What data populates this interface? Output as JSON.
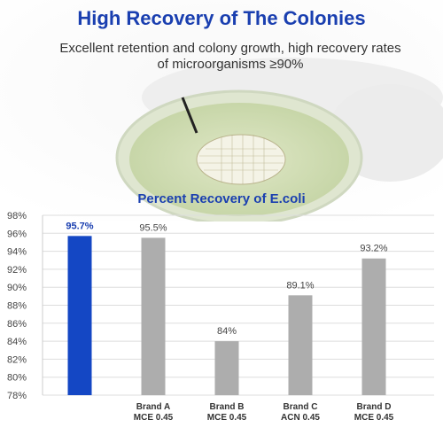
{
  "header": {
    "title": "High Recovery of The Colonies",
    "subtitle": "Excellent retention and colony growth, high recovery rates of microorganisms ≥90%"
  },
  "chart_data": {
    "type": "bar",
    "title": "Percent Recovery of E.coli",
    "categories": [
      [
        "",
        ""
      ],
      [
        "Brand A",
        "MCE 0.45"
      ],
      [
        "Brand B",
        "MCE 0.45"
      ],
      [
        "Brand C",
        "ACN 0.45"
      ],
      [
        "Brand D",
        "MCE 0.45"
      ]
    ],
    "values": [
      95.7,
      95.5,
      84,
      89.1,
      93.2
    ],
    "value_labels": [
      "95.7%",
      "95.5%",
      "84%",
      "89.1%",
      "93.2%"
    ],
    "ylim": [
      78,
      98
    ],
    "yticks": [
      "78%",
      "80%",
      "82%",
      "84%",
      "86%",
      "88%",
      "90%",
      "92%",
      "94%",
      "96%",
      "98%"
    ],
    "grid": true,
    "colors": {
      "highlight": "#1447c4",
      "others": "#adadad",
      "highlight_label": "#1a3fb0",
      "label": "#444444"
    }
  }
}
